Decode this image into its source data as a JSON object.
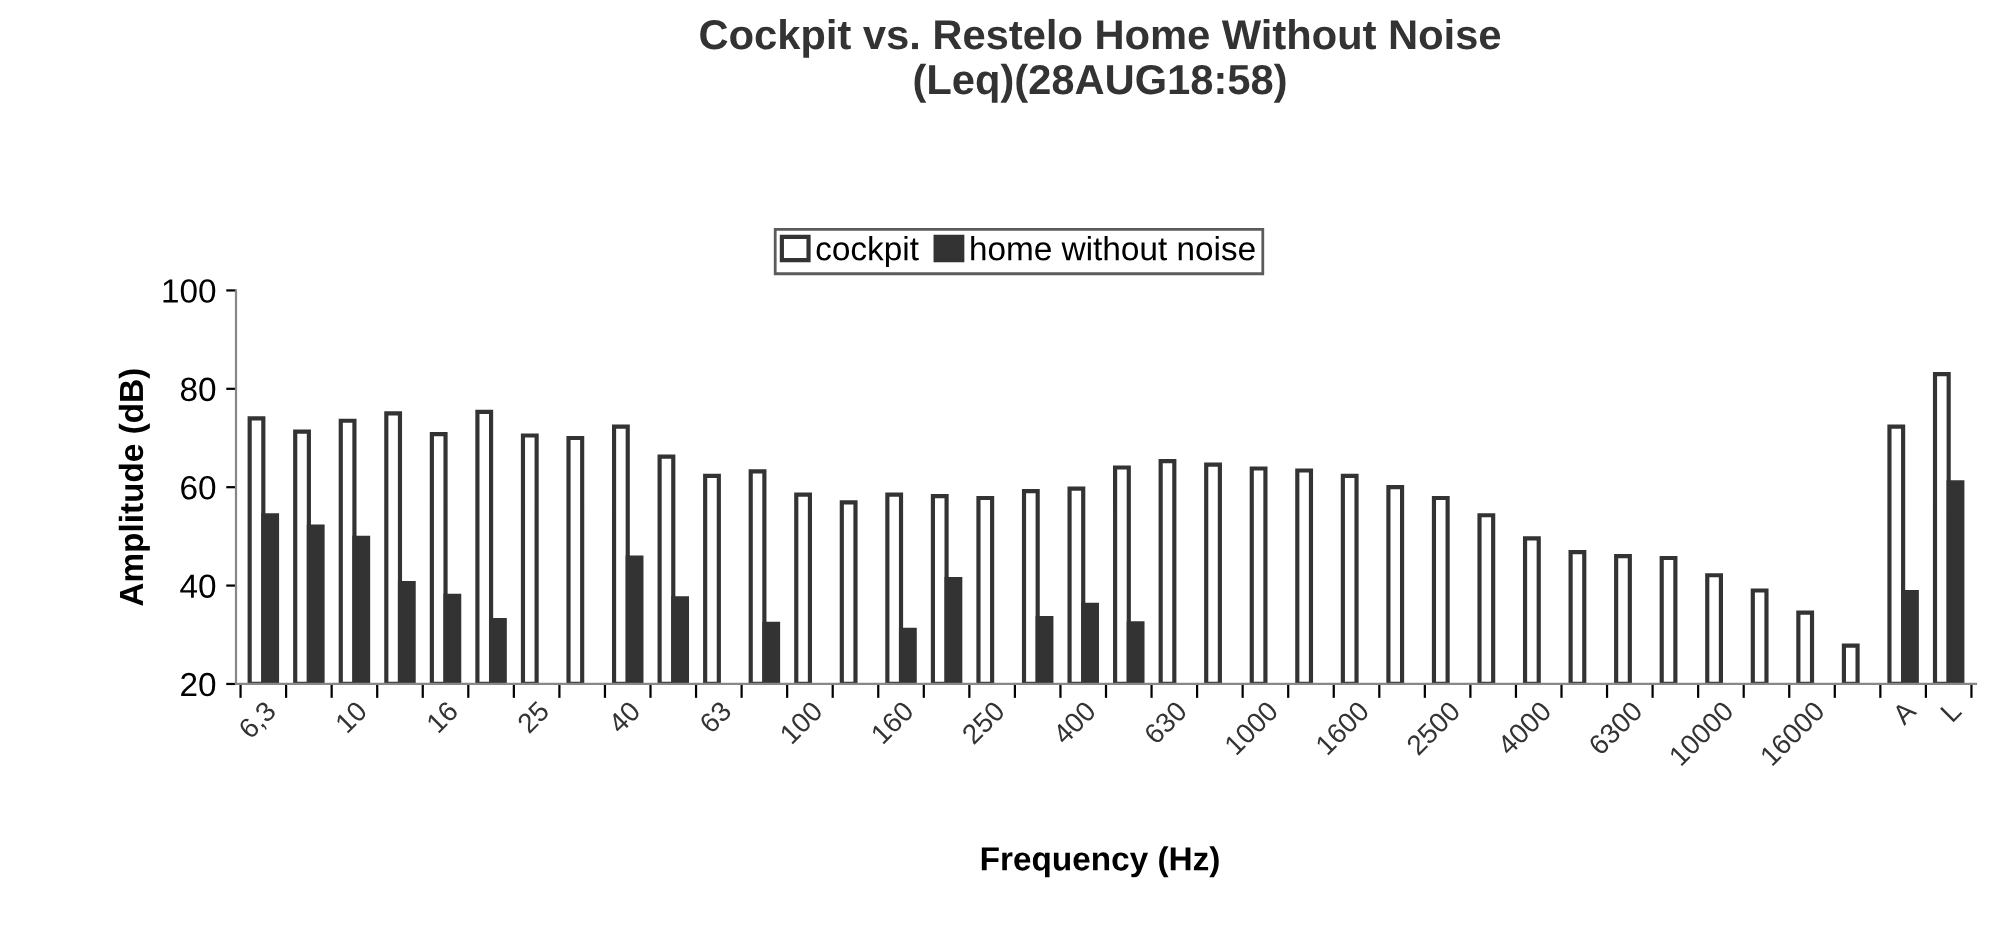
{
  "chart_data": {
    "type": "bar",
    "title": "Cockpit vs. Restelo Home Without Noise\n(Leq)(28AUG18:58)",
    "xlabel": "Frequency (Hz)",
    "ylabel": "Amplitude (dB)",
    "categories": [
      "6,3",
      null,
      "10",
      null,
      "16",
      null,
      "25",
      null,
      "40",
      null,
      "63",
      null,
      "100",
      null,
      "160",
      null,
      "250",
      null,
      "400",
      null,
      "630",
      null,
      "1000",
      null,
      "1600",
      null,
      "2500",
      null,
      "4000",
      null,
      "6300",
      null,
      "10000",
      null,
      "16000",
      null,
      "A",
      "L"
    ],
    "series": [
      {
        "name": "cockpit",
        "color": "#ffffff",
        "values": [
          74,
          71.3,
          73.5,
          75,
          70.8,
          75.3,
          70.5,
          70,
          72.3,
          66.2,
          62.3,
          63.2,
          58.5,
          56.9,
          58.5,
          58.2,
          57.8,
          59.2,
          59.7,
          64,
          65.3,
          64.6,
          63.8,
          63.4,
          62.3,
          60,
          57.8,
          54.3,
          49.6,
          46.8,
          46,
          45.6,
          42.1,
          39,
          34.5,
          27.8,
          72.3,
          83
        ]
      },
      {
        "name": "home without noise",
        "color": "#333333",
        "values": [
          54.3,
          52,
          49.7,
          40.5,
          37.9,
          33,
          null,
          null,
          45.7,
          37.4,
          null,
          32.2,
          null,
          null,
          31,
          41.3,
          null,
          33.4,
          36.1,
          32.3,
          null,
          null,
          null,
          null,
          null,
          null,
          null,
          null,
          null,
          null,
          null,
          null,
          null,
          null,
          null,
          null,
          38.7,
          61
        ]
      }
    ],
    "ylim": [
      20,
      100
    ],
    "yticks": [
      20,
      40,
      60,
      80,
      100
    ],
    "grid": false,
    "legend": "top"
  }
}
